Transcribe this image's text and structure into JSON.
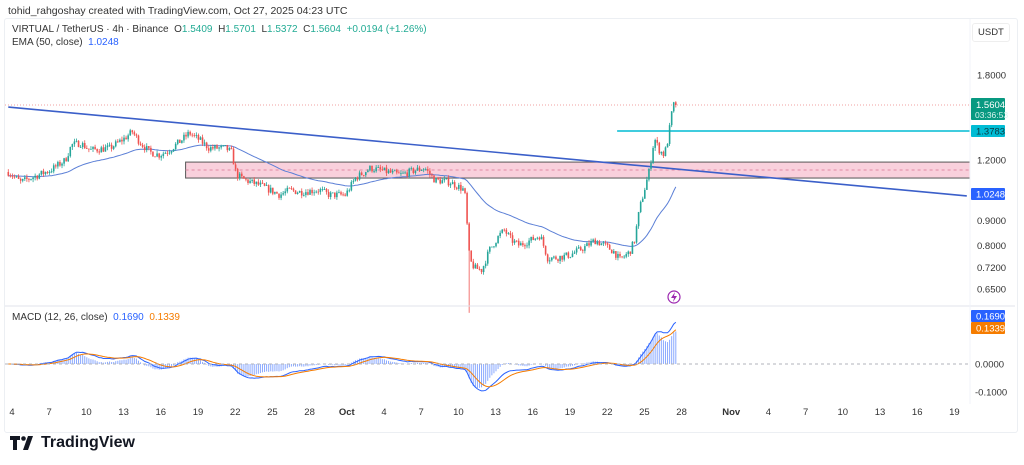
{
  "credit": "tohid_rahgoshay created with TradingView.com, Oct 27, 2025 04:23 UTC",
  "legend": {
    "symbol": "VIRTUAL / TetherUS · 4h · Binance",
    "o_label": "O",
    "o": "1.5409",
    "h_label": "H",
    "h": "1.5701",
    "l_label": "L",
    "l": "1.5372",
    "c_label": "C",
    "c": "1.5604",
    "change": "+0.0194 (+1.26%)",
    "ema_label": "EMA (50, close)",
    "ema": "1.0248"
  },
  "macd_legend": {
    "label": "MACD (12, 26, close)",
    "macd": "0.1690",
    "signal": "0.1339"
  },
  "currency": "USDT",
  "logo": "TradingView",
  "price_labels": {
    "last": "1.5604",
    "countdown": "03:36:53",
    "level": "1.3783",
    "ema": "1.0248",
    "macd": "0.1690",
    "signal": "0.1339"
  },
  "colors": {
    "up": "#26a69a",
    "down": "#ef5350",
    "ema": "#5b7fd6",
    "trend": "#3b5fc9",
    "zone": "#f8c8d6",
    "level": "#00bcd4",
    "macd": "#2962ff",
    "signal": "#f57c00"
  },
  "chart_data": {
    "type": "candlestick",
    "scale": "log",
    "price_ticks": [
      "1.8000",
      "1.2000",
      "0.9000",
      "0.8000",
      "0.7200",
      "0.6500"
    ],
    "price_tick_values": [
      1.8,
      1.2,
      0.9,
      0.8,
      0.72,
      0.65
    ],
    "macd_ticks": [
      "0.0000",
      "-0.1000"
    ],
    "macd_tick_values": [
      0,
      -0.1
    ],
    "x_ticks": [
      "4",
      "7",
      "10",
      "13",
      "16",
      "19",
      "22",
      "25",
      "28",
      "Oct",
      "4",
      "7",
      "10",
      "13",
      "16",
      "19",
      "22",
      "25",
      "28",
      "Nov",
      "4",
      "7",
      "10",
      "13",
      "16",
      "19"
    ],
    "x_tick_days": [
      4,
      7,
      10,
      13,
      16,
      19,
      22,
      25,
      28,
      31,
      34,
      37,
      40,
      43,
      46,
      49,
      52,
      55,
      58,
      62,
      65,
      68,
      71,
      74,
      77,
      80
    ],
    "close_path_days_prices": [
      [
        3.7,
        1.134
      ],
      [
        4.7,
        1.081
      ],
      [
        5.5,
        1.102
      ],
      [
        7.1,
        1.144
      ],
      [
        8.3,
        1.2
      ],
      [
        8.8,
        1.29
      ],
      [
        9.5,
        1.302
      ],
      [
        10.3,
        1.259
      ],
      [
        11.9,
        1.271
      ],
      [
        13.1,
        1.333
      ],
      [
        13.7,
        1.373
      ],
      [
        14.3,
        1.309
      ],
      [
        15.1,
        1.247
      ],
      [
        15.9,
        1.23
      ],
      [
        16.7,
        1.259
      ],
      [
        17.7,
        1.322
      ],
      [
        18.3,
        1.366
      ],
      [
        19.1,
        1.322
      ],
      [
        19.9,
        1.271
      ],
      [
        21.2,
        1.271
      ],
      [
        21.7,
        1.247
      ],
      [
        22.1,
        1.118
      ],
      [
        22.8,
        1.091
      ],
      [
        24,
        1.065
      ],
      [
        25.6,
        1.017
      ],
      [
        26.4,
        1.041
      ],
      [
        27.2,
        1.031
      ],
      [
        28.8,
        1.041
      ],
      [
        29.6,
        1.017
      ],
      [
        30.9,
        1.017
      ],
      [
        31.7,
        1.102
      ],
      [
        32.9,
        1.155
      ],
      [
        33.7,
        1.144
      ],
      [
        35.3,
        1.118
      ],
      [
        36.5,
        1.144
      ],
      [
        37.3,
        1.155
      ],
      [
        38.1,
        1.091
      ],
      [
        39.3,
        1.081
      ],
      [
        40.5,
        1.041
      ],
      [
        40.9,
        0.746
      ],
      [
        41.3,
        0.718
      ],
      [
        41.9,
        0.711
      ],
      [
        42.5,
        0.782
      ],
      [
        43.3,
        0.839
      ],
      [
        43.7,
        0.86
      ],
      [
        44.3,
        0.819
      ],
      [
        44.9,
        0.8
      ],
      [
        45.8,
        0.819
      ],
      [
        46.6,
        0.839
      ],
      [
        47.2,
        0.753
      ],
      [
        47.8,
        0.753
      ],
      [
        49,
        0.764
      ],
      [
        50.2,
        0.793
      ],
      [
        51,
        0.819
      ],
      [
        51.8,
        0.8
      ],
      [
        52.6,
        0.774
      ],
      [
        53,
        0.746
      ],
      [
        53.8,
        0.774
      ],
      [
        54.2,
        0.819
      ],
      [
        54.6,
        0.949
      ],
      [
        55,
        1.041
      ],
      [
        55.4,
        1.144
      ],
      [
        55.8,
        1.333
      ],
      [
        56.2,
        1.259
      ],
      [
        56.6,
        1.23
      ],
      [
        56.9,
        1.322
      ],
      [
        57.3,
        1.56
      ],
      [
        57.6,
        1.5604
      ]
    ],
    "flash_crash_low": {
      "day": 40.9,
      "price": 0.58
    },
    "trendline": {
      "start": {
        "day": 3.7,
        "price": 1.545
      },
      "end": {
        "day": 81,
        "price": 1.012
      }
    },
    "zone": {
      "start_day": 18,
      "end_day": 81,
      "top": 1.189,
      "bottom": 1.102
    },
    "level": {
      "start_day": 52.8,
      "price": 1.3783
    },
    "last_price": 1.5604,
    "candle_hours": 4
  }
}
